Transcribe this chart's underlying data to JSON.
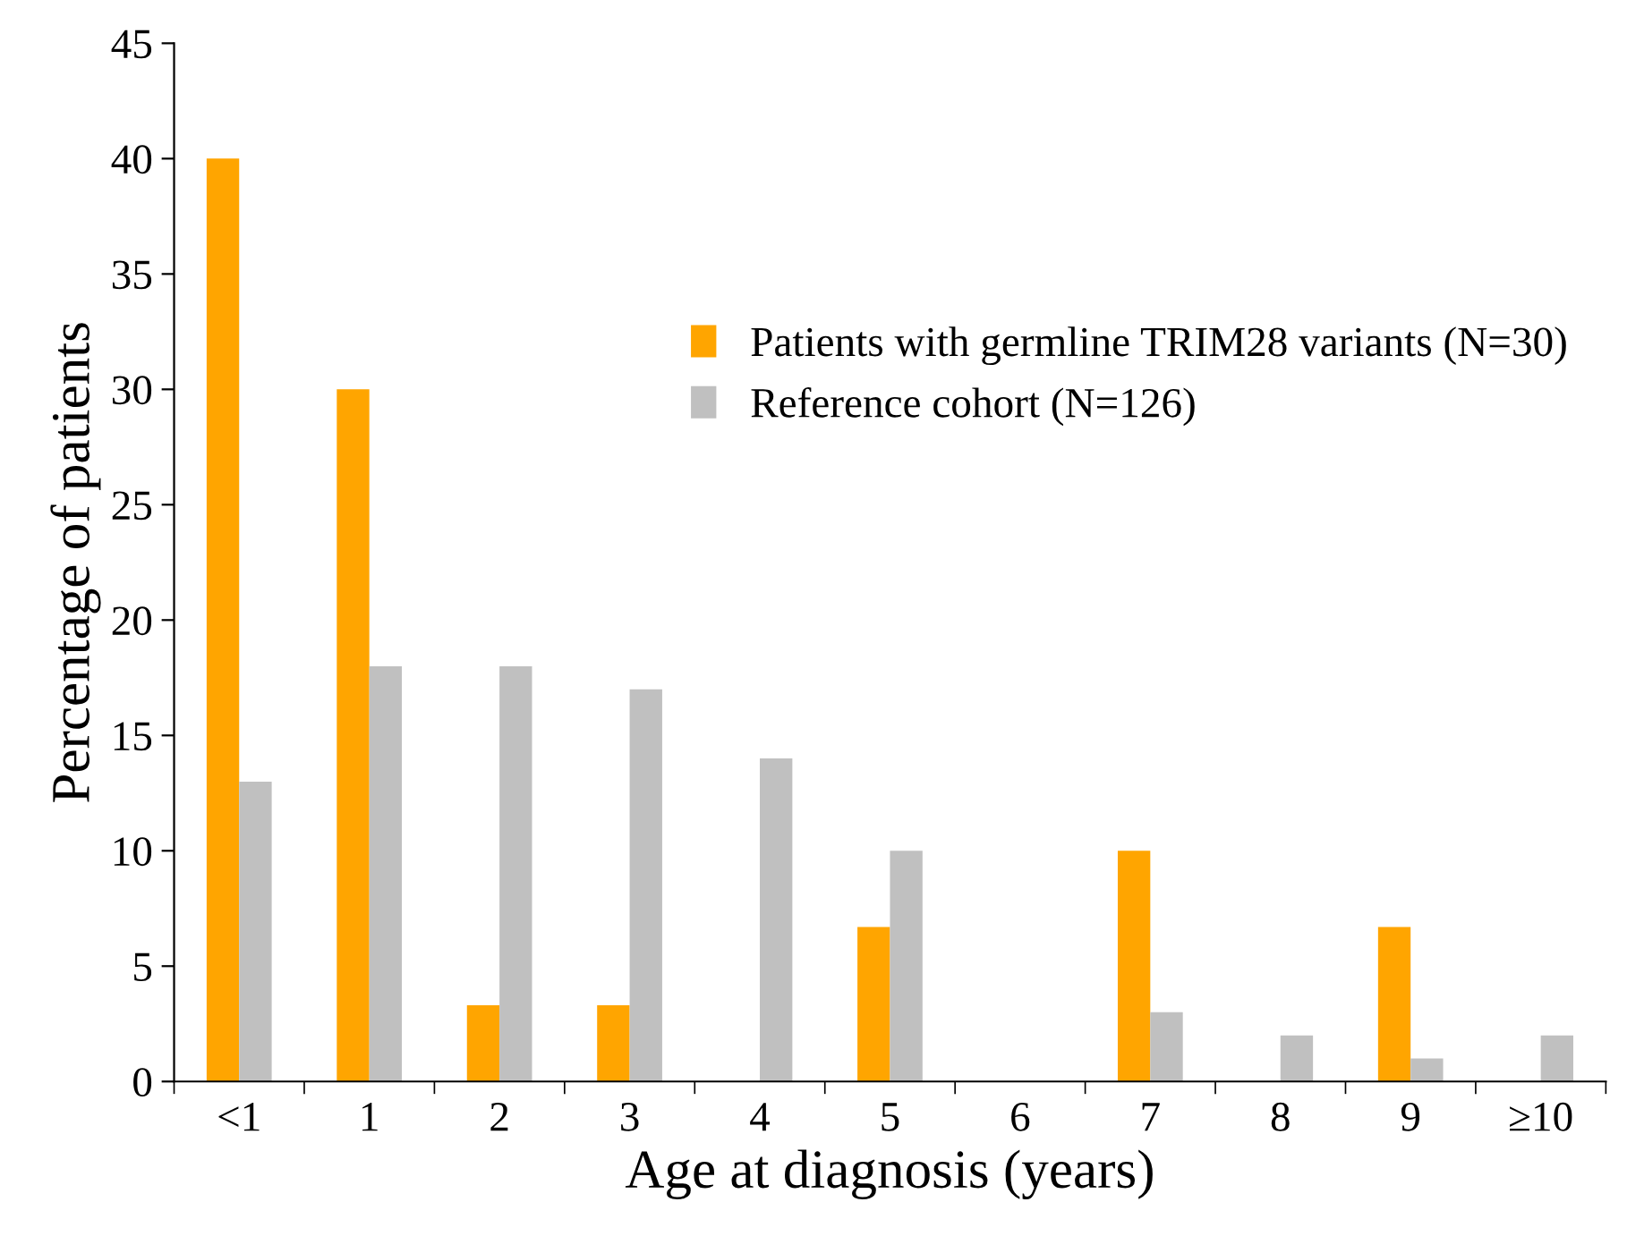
{
  "chart_data": {
    "type": "bar",
    "xlabel": "Age at diagnosis (years)",
    "ylabel": "Percentage of patients",
    "categories": [
      "<1",
      "1",
      "2",
      "3",
      "4",
      "5",
      "6",
      "7",
      "8",
      "9",
      "≥10"
    ],
    "series": [
      {
        "name": "Patients with germline TRIM28 variants (N=30)",
        "color": "#ffa500",
        "values": [
          40,
          30,
          3.3,
          3.3,
          0,
          6.7,
          0,
          10,
          0,
          6.7,
          0
        ]
      },
      {
        "name": "Reference cohort (N=126)",
        "color": "#c0c0c0",
        "values": [
          13,
          18,
          18,
          17,
          14,
          10,
          0,
          3,
          2,
          1,
          2
        ]
      }
    ],
    "ylim": [
      0,
      45
    ],
    "yticks": [
      0,
      5,
      10,
      15,
      20,
      25,
      30,
      35,
      40,
      45
    ],
    "grid": false,
    "legend": "right"
  }
}
